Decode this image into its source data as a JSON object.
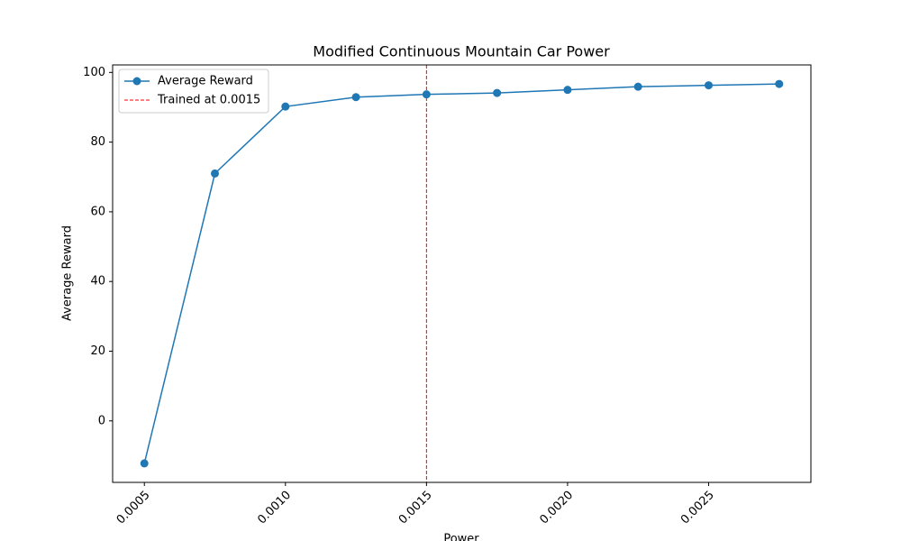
{
  "chart_data": {
    "type": "line",
    "title": "Modified Continuous Mountain Car Power",
    "x_label": "Power",
    "y_label": "Average Reward",
    "x": [
      0.0005,
      0.00075,
      0.001,
      0.00125,
      0.0015,
      0.00175,
      0.002,
      0.00225,
      0.0025,
      0.00275
    ],
    "series": [
      {
        "name": "Average Reward",
        "color": "#1f77b4",
        "values": [
          -12.2,
          71.0,
          90.2,
          92.9,
          93.7,
          94.1,
          95.0,
          95.9,
          96.3,
          96.7
        ]
      }
    ],
    "vlines": [
      {
        "x": 0.0015,
        "name": "Trained at 0.0015",
        "color": "#ff0000"
      }
    ],
    "xlim": [
      0.0003875,
      0.0028625
    ],
    "ylim": [
      -17.65,
      102.15
    ],
    "xticks": [
      {
        "value": 0.0005,
        "label": "0.0005"
      },
      {
        "value": 0.001,
        "label": "0.0010"
      },
      {
        "value": 0.0015,
        "label": "0.0015"
      },
      {
        "value": 0.002,
        "label": "0.0020"
      },
      {
        "value": 0.0025,
        "label": "0.0025"
      }
    ],
    "yticks": [
      0,
      20,
      40,
      60,
      80,
      100
    ],
    "legend": "upper left"
  }
}
